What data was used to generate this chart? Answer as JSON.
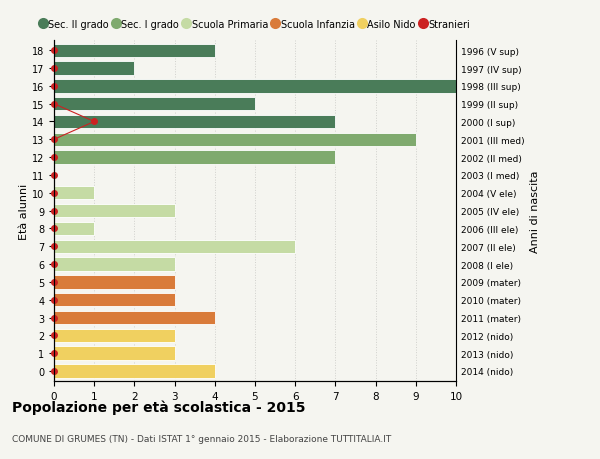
{
  "ages": [
    18,
    17,
    16,
    15,
    14,
    13,
    12,
    11,
    10,
    9,
    8,
    7,
    6,
    5,
    4,
    3,
    2,
    1,
    0
  ],
  "years": [
    "1996 (V sup)",
    "1997 (IV sup)",
    "1998 (III sup)",
    "1999 (II sup)",
    "2000 (I sup)",
    "2001 (III med)",
    "2002 (II med)",
    "2003 (I med)",
    "2004 (V ele)",
    "2005 (IV ele)",
    "2006 (III ele)",
    "2007 (II ele)",
    "2008 (I ele)",
    "2009 (mater)",
    "2010 (mater)",
    "2011 (mater)",
    "2012 (nido)",
    "2013 (nido)",
    "2014 (nido)"
  ],
  "bar_values": [
    4,
    2,
    10,
    5,
    7,
    9,
    7,
    0,
    1,
    3,
    1,
    6,
    3,
    3,
    3,
    4,
    3,
    3,
    4
  ],
  "bar_colors": [
    "#4a7c59",
    "#4a7c59",
    "#4a7c59",
    "#4a7c59",
    "#4a7c59",
    "#7faa6e",
    "#7faa6e",
    "#7faa6e",
    "#c5dba4",
    "#c5dba4",
    "#c5dba4",
    "#c5dba4",
    "#c5dba4",
    "#d97b3a",
    "#d97b3a",
    "#d97b3a",
    "#f0d060",
    "#f0d060",
    "#f0d060"
  ],
  "stranieri_x": [
    0,
    0,
    0,
    0,
    1,
    0,
    0,
    0,
    0,
    0,
    0,
    0,
    0,
    0,
    0,
    0,
    0,
    0,
    0
  ],
  "colors": {
    "sec2": "#4a7c59",
    "sec1": "#7faa6e",
    "primaria": "#c5dba4",
    "infanzia": "#d97b3a",
    "nido": "#f0d060",
    "stranieri": "#cc2222"
  },
  "legend_labels": [
    "Sec. II grado",
    "Sec. I grado",
    "Scuola Primaria",
    "Scuola Infanzia",
    "Asilo Nido",
    "Stranieri"
  ],
  "title": "Popolazione per età scolastica - 2015",
  "subtitle": "COMUNE DI GRUMES (TN) - Dati ISTAT 1° gennaio 2015 - Elaborazione TUTTITALIA.IT",
  "ylabel_left": "Età alunni",
  "ylabel_right": "Anni di nascita",
  "xlim": [
    0,
    10
  ],
  "background_color": "#f5f5f0",
  "grid_color": "#d0d0cc"
}
